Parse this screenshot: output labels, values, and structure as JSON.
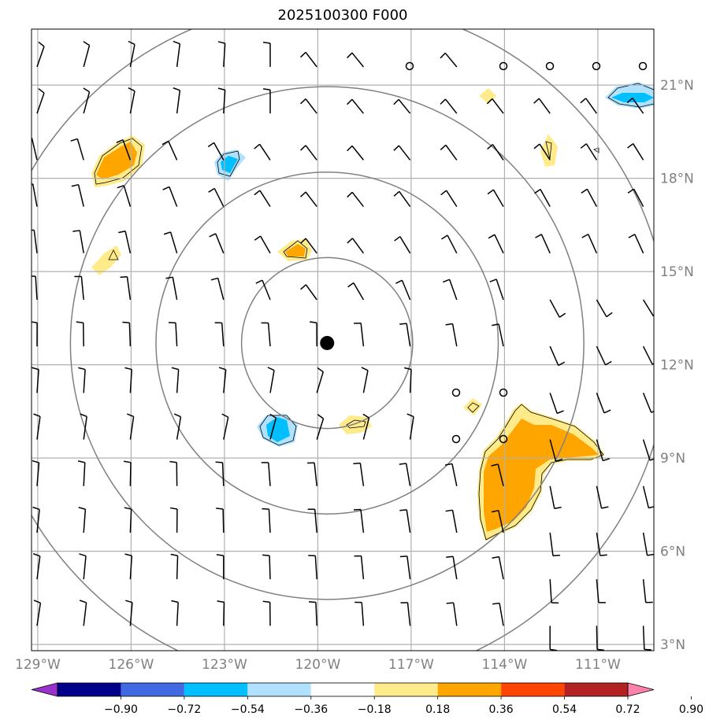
{
  "title": "2025100300 F000",
  "axes": {
    "lon_labels": [
      "129°W",
      "126°W",
      "123°W",
      "120°W",
      "117°W",
      "114°W",
      "111°W"
    ],
    "lat_labels": [
      "21°N",
      "18°N",
      "15°N",
      "12°N",
      "9°N",
      "6°N",
      "3°N"
    ],
    "lon_range": [
      -129.2,
      -109.2
    ],
    "lat_range": [
      2.8,
      22.8
    ]
  },
  "storm_center": {
    "lon": -119.7,
    "lat": 12.7
  },
  "range_rings_deg": [
    2.75,
    5.5,
    8.25,
    11.0
  ],
  "colorbar": {
    "ticks": [
      "−0.90",
      "−0.72",
      "−0.54",
      "−0.36",
      "−0.18",
      "0.18",
      "0.36",
      "0.54",
      "0.72",
      "0.90"
    ],
    "colors": [
      "#9932cc",
      "#00008b",
      "#4169e1",
      "#00bfff",
      "#b0e2ff",
      "#ffffff",
      "#ffeb8a",
      "#ffa500",
      "#ff4500",
      "#b22222",
      "#ff82ab"
    ],
    "under_color": "#9932cc",
    "over_color": "#ff82ab"
  },
  "colors": {
    "grid": "#b0b0b0",
    "ring": "#808080",
    "barb": "#000000",
    "light_yellow": "#ffeb8a",
    "orange": "#ffa500",
    "light_blue": "#b0e2ff",
    "blue": "#00bfff"
  }
}
